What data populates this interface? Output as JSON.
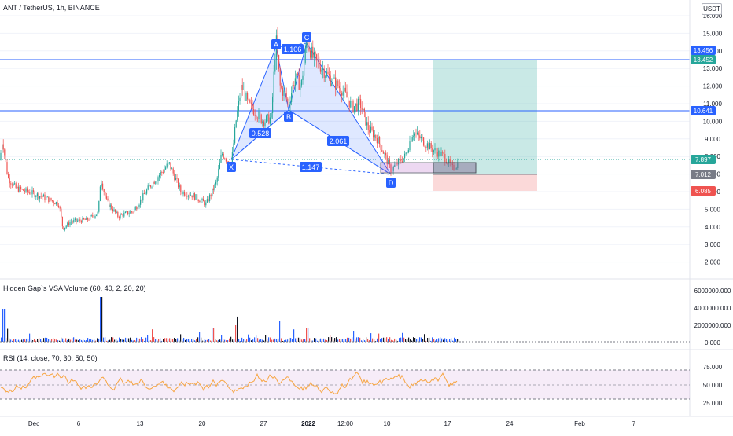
{
  "header": {
    "symbol_line": "ANT / TetherUS, 1h, BINANCE",
    "currency_label": "USDT"
  },
  "colors": {
    "up": "#26a69a",
    "down": "#ef5350",
    "hline": "#2962ff",
    "pattern_fill": "#2962ff",
    "pattern_label_bg": "#2962ff",
    "profit_zone": "#26a69a",
    "loss_zone": "#ef5350",
    "rsi_line": "#f7a541",
    "rsi_band": "#9c27b0",
    "volume_line": "#2962ff",
    "axis_text": "#131722",
    "grid": "#f0f3fa"
  },
  "price_axis": {
    "ticks": [
      "16.000",
      "15.000",
      "14.000",
      "13.000",
      "12.000",
      "11.000",
      "10.000",
      "9.000",
      "8.000",
      "7.000",
      "6.000",
      "5.000",
      "4.000",
      "3.000",
      "2.000"
    ]
  },
  "price_badges": [
    {
      "text": "13.456",
      "color": "#2962ff"
    },
    {
      "text": "13.452",
      "color": "#26a69a"
    },
    {
      "text": "10.641",
      "color": "#2962ff"
    },
    {
      "text": "7.897",
      "color": "#26a69a"
    },
    {
      "text": "7.012",
      "color": "#787b86"
    },
    {
      "text": "6.085",
      "color": "#ef5350"
    }
  ],
  "pattern": {
    "points": {
      "X": "X",
      "A": "A",
      "B": "B",
      "C": "C",
      "D": "D"
    },
    "ratios": {
      "xb": "0.528",
      "ac": "1.106",
      "bd": "2.061",
      "xd": "1.147"
    }
  },
  "volume_pane": {
    "legend": "Hidden Gap`s VSA Volume (60, 40, 2, 20, 20)",
    "ticks": [
      "6000000.000",
      "4000000.000",
      "2000000.000",
      "0.000"
    ]
  },
  "rsi_pane": {
    "legend": "RSI (14, close, 70, 30, 50, 50)",
    "ticks": [
      "75.000",
      "50.000",
      "25.000"
    ]
  },
  "time_axis": {
    "labels": [
      "Dec",
      "6",
      "13",
      "20",
      "27",
      "2022",
      "12:00",
      "10",
      "17",
      "24",
      "Feb",
      "7"
    ]
  }
}
